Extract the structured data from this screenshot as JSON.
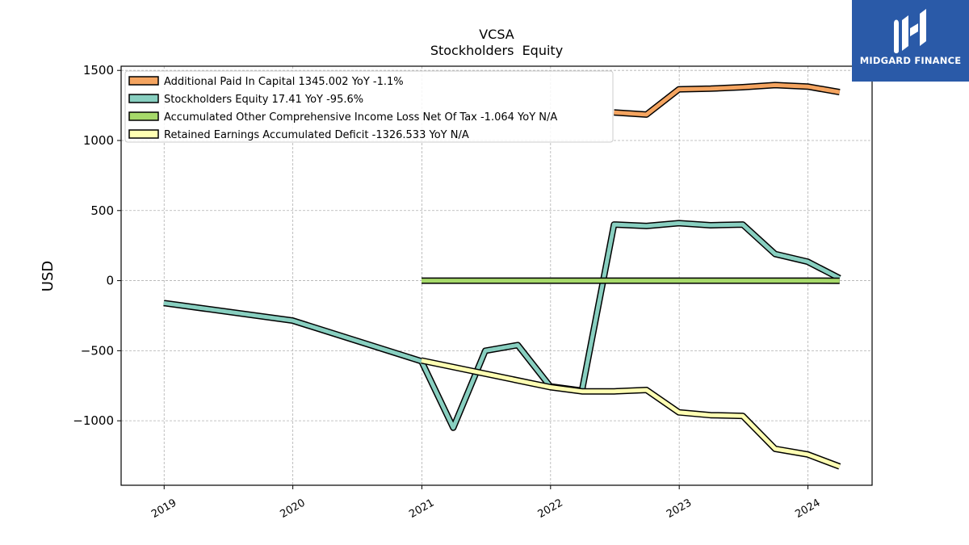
{
  "chart_data": {
    "type": "line",
    "title": "VCSA",
    "subtitle": "Stockholders  Equity",
    "ylabel": "USD",
    "xlabel": "",
    "xlim": [
      "2018-09-01",
      "2024-07-01"
    ],
    "ylim": [
      -1460,
      1530
    ],
    "yticks": [
      1500,
      1000,
      500,
      0,
      -500,
      -1000
    ],
    "ytick_labels": [
      "1500",
      "1000",
      "500",
      "0",
      "−500",
      "−1000"
    ],
    "xticks": [
      "2019-01-01",
      "2020-01-01",
      "2021-01-01",
      "2022-01-01",
      "2023-01-01",
      "2024-01-01"
    ],
    "xtick_labels": [
      "2019",
      "2020",
      "2021",
      "2022",
      "2023",
      "2024"
    ],
    "grid": true,
    "legend_position": "top-left",
    "series": [
      {
        "name": "Additional Paid In Capital  1345.002 YoY -1.1%",
        "color": "#f4a460",
        "points": [
          [
            "2022-06-30",
            1200
          ],
          [
            "2022-09-30",
            1185
          ],
          [
            "2022-12-31",
            1365
          ],
          [
            "2023-03-31",
            1370
          ],
          [
            "2023-06-30",
            1380
          ],
          [
            "2023-09-30",
            1395
          ],
          [
            "2023-12-31",
            1385
          ],
          [
            "2024-03-31",
            1345
          ]
        ]
      },
      {
        "name": "Stockholders Equity  17.41 YoY -95.6%",
        "color": "#88cfc0",
        "points": [
          [
            "2018-12-31",
            -160
          ],
          [
            "2019-12-31",
            -285
          ],
          [
            "2020-12-31",
            -575
          ],
          [
            "2021-03-31",
            -1050
          ],
          [
            "2021-06-30",
            -500
          ],
          [
            "2021-09-30",
            -460
          ],
          [
            "2021-12-31",
            -755
          ],
          [
            "2022-03-31",
            -785
          ],
          [
            "2022-06-30",
            400
          ],
          [
            "2022-09-30",
            390
          ],
          [
            "2022-12-31",
            410
          ],
          [
            "2023-03-31",
            395
          ],
          [
            "2023-06-30",
            400
          ],
          [
            "2023-09-30",
            190
          ],
          [
            "2023-12-31",
            135
          ],
          [
            "2024-03-31",
            17.41
          ]
        ]
      },
      {
        "name": "Accumulated Other Comprehensive Income Loss Net Of Tax  -1.064 YoY N/A",
        "color": "#a6d96a",
        "points": [
          [
            "2020-12-31",
            0
          ],
          [
            "2021-12-31",
            0
          ],
          [
            "2022-12-31",
            0
          ],
          [
            "2023-12-31",
            0
          ],
          [
            "2024-03-31",
            -1.064
          ]
        ]
      },
      {
        "name": "Retained Earnings Accumulated Deficit  -1326.533 YoY N/A",
        "color": "#ffffb3",
        "points": [
          [
            "2020-12-31",
            -570
          ],
          [
            "2021-12-31",
            -760
          ],
          [
            "2022-03-31",
            -790
          ],
          [
            "2022-06-30",
            -790
          ],
          [
            "2022-09-30",
            -780
          ],
          [
            "2022-12-31",
            -940
          ],
          [
            "2023-03-31",
            -960
          ],
          [
            "2023-06-30",
            -965
          ],
          [
            "2023-09-30",
            -1200
          ],
          [
            "2023-12-31",
            -1240
          ],
          [
            "2024-03-31",
            -1326.533
          ]
        ]
      }
    ]
  },
  "logo": {
    "text": "MIDGARD FINANCE"
  }
}
